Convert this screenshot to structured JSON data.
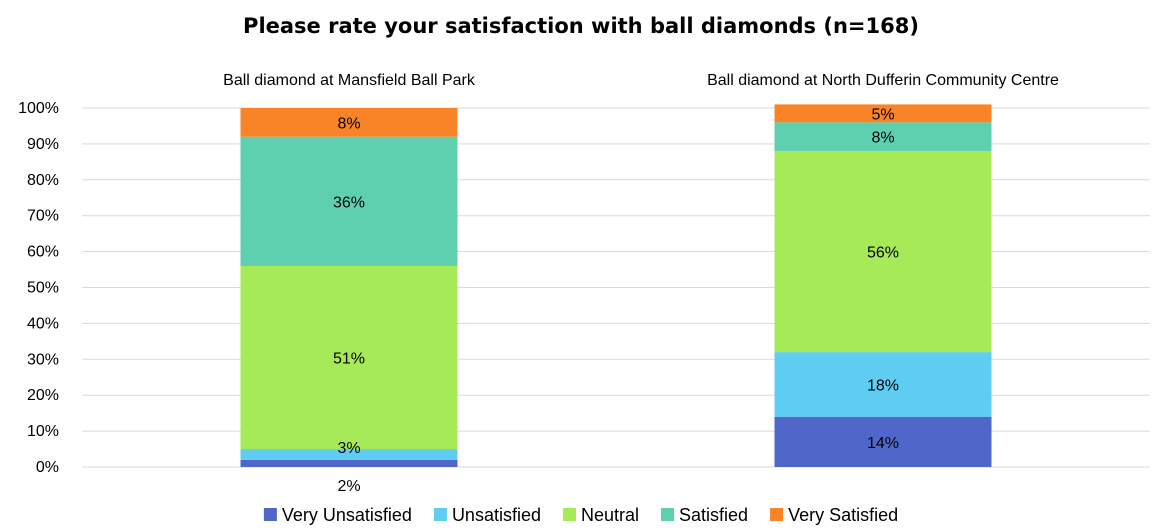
{
  "chart_data": {
    "type": "bar",
    "stacked": true,
    "normalized": true,
    "title": "Please rate your satisfaction with ball diamonds (n=168)",
    "categories": [
      "Ball diamond at Mansfield Ball Park",
      "Ball diamond at North Dufferin Community Centre"
    ],
    "series": [
      {
        "name": "Very Unsatisfied",
        "color": "#4f67c9",
        "values": [
          2,
          14
        ]
      },
      {
        "name": "Unsatisfied",
        "color": "#5fcdf2",
        "values": [
          3,
          18
        ]
      },
      {
        "name": "Neutral",
        "color": "#a6ea58",
        "values": [
          51,
          56
        ]
      },
      {
        "name": "Satisfied",
        "color": "#5ed0b0",
        "values": [
          36,
          8
        ]
      },
      {
        "name": "Very Satisfied",
        "color": "#f98427",
        "values": [
          8,
          5
        ]
      }
    ],
    "data_labels": [
      [
        "2%",
        "3%",
        "51%",
        "36%",
        "8%"
      ],
      [
        "14%",
        "18%",
        "56%",
        "8%",
        "5%"
      ]
    ],
    "y_ticks": [
      "0%",
      "10%",
      "20%",
      "30%",
      "40%",
      "50%",
      "60%",
      "70%",
      "80%",
      "90%",
      "100%"
    ],
    "ylim": [
      0,
      100
    ],
    "xlabel": "",
    "ylabel": "",
    "grid": true,
    "legend_position": "bottom"
  }
}
